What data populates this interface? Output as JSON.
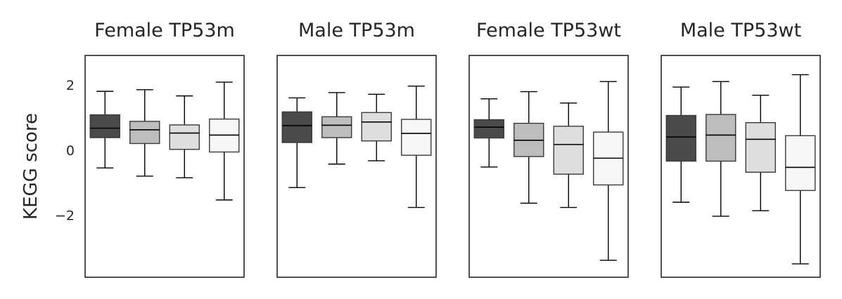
{
  "chart_data": {
    "type": "box",
    "ylabel": "KEGG score",
    "ylim": [
      -3.9,
      2.9
    ],
    "yticks": [
      2,
      0,
      -2
    ],
    "yticklabels": [
      "2",
      "0",
      "−2"
    ],
    "box_colors": [
      "#4a4a4a",
      "#bdbdbd",
      "#dedede",
      "#f7f7f7"
    ],
    "panels": [
      {
        "title": "Female TP53m",
        "boxes": [
          {
            "whislo": -0.55,
            "q1": 0.38,
            "median": 0.67,
            "q3": 1.08,
            "whishi": 1.8
          },
          {
            "whislo": -0.8,
            "q1": 0.2,
            "median": 0.62,
            "q3": 0.88,
            "whishi": 1.85
          },
          {
            "whislo": -0.85,
            "q1": 0.02,
            "median": 0.52,
            "q3": 0.77,
            "whishi": 1.66
          },
          {
            "whislo": -1.53,
            "q1": -0.06,
            "median": 0.46,
            "q3": 0.95,
            "whishi": 2.08
          }
        ]
      },
      {
        "title": "Male TP53m",
        "boxes": [
          {
            "whislo": -1.15,
            "q1": 0.23,
            "median": 0.75,
            "q3": 1.17,
            "whishi": 1.6
          },
          {
            "whislo": -0.43,
            "q1": 0.38,
            "median": 0.76,
            "q3": 1.02,
            "whishi": 1.76
          },
          {
            "whislo": -0.33,
            "q1": 0.28,
            "median": 0.86,
            "q3": 1.15,
            "whishi": 1.71
          },
          {
            "whislo": -1.76,
            "q1": -0.16,
            "median": 0.51,
            "q3": 0.94,
            "whishi": 1.96
          }
        ]
      },
      {
        "title": "Female TP53wt",
        "boxes": [
          {
            "whislo": -0.52,
            "q1": 0.37,
            "median": 0.7,
            "q3": 0.93,
            "whishi": 1.57
          },
          {
            "whislo": -1.63,
            "q1": -0.2,
            "median": 0.3,
            "q3": 0.82,
            "whishi": 1.79
          },
          {
            "whislo": -1.76,
            "q1": -0.74,
            "median": 0.17,
            "q3": 0.73,
            "whishi": 1.44
          },
          {
            "whislo": -3.38,
            "q1": -1.07,
            "median": -0.25,
            "q3": 0.55,
            "whishi": 2.1
          }
        ]
      },
      {
        "title": "Male TP53wt",
        "boxes": [
          {
            "whislo": -1.6,
            "q1": -0.34,
            "median": 0.4,
            "q3": 1.06,
            "whishi": 1.93
          },
          {
            "whislo": -2.03,
            "q1": -0.34,
            "median": 0.46,
            "q3": 1.09,
            "whishi": 2.1
          },
          {
            "whislo": -1.86,
            "q1": -0.68,
            "median": 0.33,
            "q3": 0.84,
            "whishi": 1.68
          },
          {
            "whislo": -3.49,
            "q1": -1.24,
            "median": -0.53,
            "q3": 0.44,
            "whishi": 2.31
          }
        ]
      }
    ]
  }
}
